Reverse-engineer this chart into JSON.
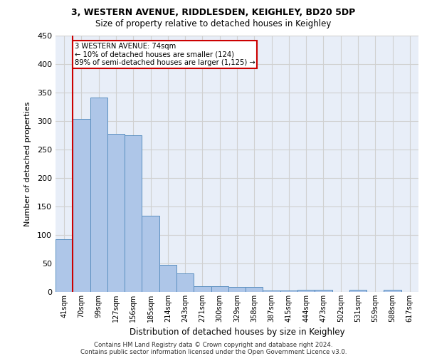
{
  "title1": "3, WESTERN AVENUE, RIDDLESDEN, KEIGHLEY, BD20 5DP",
  "title2": "Size of property relative to detached houses in Keighley",
  "xlabel": "Distribution of detached houses by size in Keighley",
  "ylabel": "Number of detached properties",
  "footer1": "Contains HM Land Registry data © Crown copyright and database right 2024.",
  "footer2": "Contains public sector information licensed under the Open Government Licence v3.0.",
  "bar_labels": [
    "41sqm",
    "70sqm",
    "99sqm",
    "127sqm",
    "156sqm",
    "185sqm",
    "214sqm",
    "243sqm",
    "271sqm",
    "300sqm",
    "329sqm",
    "358sqm",
    "387sqm",
    "415sqm",
    "444sqm",
    "473sqm",
    "502sqm",
    "531sqm",
    "559sqm",
    "588sqm",
    "617sqm"
  ],
  "bar_values": [
    92,
    304,
    341,
    277,
    275,
    134,
    47,
    32,
    10,
    10,
    9,
    9,
    3,
    3,
    4,
    4,
    0,
    4,
    0,
    4,
    0
  ],
  "bar_color": "#aec6e8",
  "bar_edgecolor": "#5a8fc0",
  "grid_color": "#d0d0d0",
  "background_color": "#e8eef8",
  "annotation_line1": "3 WESTERN AVENUE: 74sqm",
  "annotation_line2": "← 10% of detached houses are smaller (124)",
  "annotation_line3": "89% of semi-detached houses are larger (1,125) →",
  "annotation_box_color": "#cc0000",
  "ylim": [
    0,
    450
  ],
  "yticks": [
    0,
    50,
    100,
    150,
    200,
    250,
    300,
    350,
    400,
    450
  ]
}
